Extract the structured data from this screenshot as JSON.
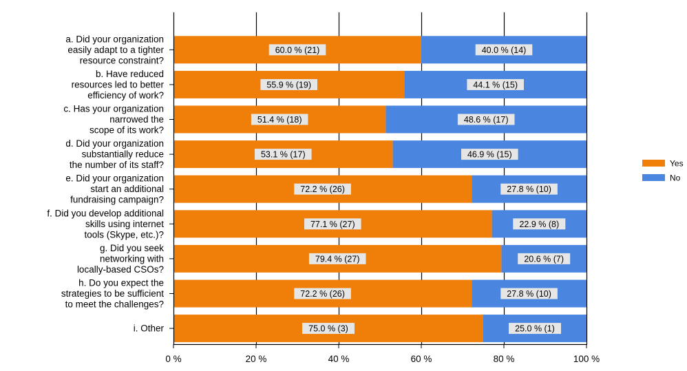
{
  "chart_data": {
    "type": "bar",
    "orientation": "horizontal",
    "stacked": true,
    "categories": [
      [
        "a. Did your organization",
        "easily adapt to a tighter",
        "resource constraint?"
      ],
      [
        "b. Have reduced",
        "resources led to better",
        "efficiency of work?"
      ],
      [
        "c. Has your organization",
        "narrowed the",
        "scope of its work?"
      ],
      [
        "d. Did your organization",
        "substantially reduce",
        "the number of its staff?"
      ],
      [
        "e. Did your organization",
        "start an additional",
        "fundraising campaign?"
      ],
      [
        "f. Did you develop additional",
        "skills using internet",
        "tools (Skype, etc.)?"
      ],
      [
        "g. Did you seek",
        "networking with",
        "locally-based CSOs?"
      ],
      [
        "h. Do you expect the",
        "strategies to be sufficient",
        "to meet the challenges?"
      ],
      [
        "i. Other"
      ]
    ],
    "series": [
      {
        "name": "Yes",
        "color": "#f07f09",
        "values": [
          60.0,
          55.9,
          51.4,
          53.1,
          72.2,
          77.1,
          79.4,
          72.2,
          75.0
        ],
        "labels": [
          "60.0 % (21)",
          "55.9 % (19)",
          "51.4 % (18)",
          "53.1 % (17)",
          "72.2 % (26)",
          "77.1 % (27)",
          "79.4 % (27)",
          "72.2 % (26)",
          "75.0 % (3)"
        ]
      },
      {
        "name": "No",
        "color": "#4a86e0",
        "values": [
          40.0,
          44.1,
          48.6,
          46.9,
          27.8,
          22.9,
          20.6,
          27.8,
          25.0
        ],
        "labels": [
          "40.0 % (14)",
          "44.1 % (15)",
          "48.6 % (17)",
          "46.9 % (15)",
          "27.8 % (10)",
          "22.9 % (8)",
          "20.6 % (7)",
          "27.8 % (10)",
          "25.0 % (1)"
        ]
      }
    ],
    "xlim": [
      0,
      100
    ],
    "xticks": [
      0,
      20,
      40,
      60,
      80,
      100
    ],
    "xtick_labels": [
      "0 %",
      "20 %",
      "40 %",
      "60 %",
      "80 %",
      "100 %"
    ],
    "grid": "vertical",
    "legend_position": "right"
  }
}
